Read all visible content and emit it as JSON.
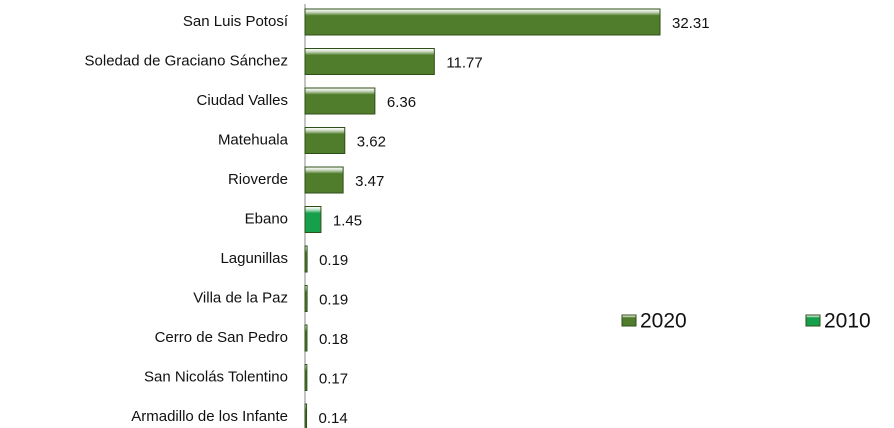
{
  "chart_data": {
    "type": "bar",
    "orientation": "horizontal",
    "categories": [
      "San Luis Potosí",
      "Soledad de Graciano Sánchez",
      "Ciudad Valles",
      "Matehuala",
      "Rioverde",
      "Ebano",
      "Lagunillas",
      "Villa de la Paz",
      "Cerro de San Pedro",
      "San Nicolás Tolentino",
      "Armadillo de los Infante"
    ],
    "series": [
      {
        "name": "2020",
        "color": "#4f7d2b",
        "values": [
          32.31,
          11.77,
          6.36,
          3.62,
          3.47,
          null,
          0.19,
          0.19,
          0.18,
          0.17,
          0.14
        ]
      },
      {
        "name": "2010",
        "color": "#17a04c",
        "values": [
          null,
          null,
          null,
          null,
          null,
          1.45,
          null,
          null,
          null,
          null,
          null
        ]
      }
    ],
    "legend": "right"
  }
}
